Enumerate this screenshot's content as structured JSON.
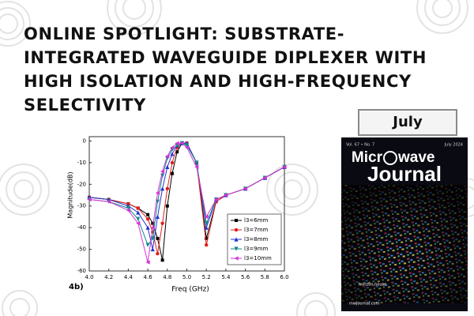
{
  "header": {
    "title_lines": [
      "ONLINE SPOTLIGHT: SUBSTRATE-",
      "INTEGRATED WAVEGUIDE DIPLEXER WITH",
      "HIGH ISOLATION AND HIGH-FREQUENCY",
      "SELECTIVITY"
    ]
  },
  "badge": {
    "label": "July"
  },
  "cover": {
    "issue": "Vol. 67 • No. 7",
    "date": "July 2024",
    "masthead_left": "Micr",
    "masthead_right": "wave",
    "masthead_bottom": "Journal",
    "publisher": "horizon house",
    "url": "mwjournal.com"
  },
  "figure_label": "4b)",
  "chart_data": {
    "type": "line",
    "x_label": "Freq (GHz)",
    "y_label": "Magnitude(dB)",
    "x": [
      4.0,
      4.2,
      4.4,
      4.5,
      4.6,
      4.65,
      4.7,
      4.75,
      4.8,
      4.85,
      4.9,
      4.95,
      5.0,
      5.1,
      5.2,
      5.3,
      5.4,
      5.6,
      5.8,
      6.0
    ],
    "series": [
      {
        "name": "l3=6mm",
        "color": "#000000",
        "marker": "square",
        "values": [
          -26,
          -27,
          -29,
          -31,
          -34,
          -38,
          -45,
          -55,
          -30,
          -15,
          -5,
          -1,
          -1,
          -10,
          -45,
          -28,
          -25,
          -22,
          -17,
          -12
        ]
      },
      {
        "name": "l3=7mm",
        "color": "#e0201b",
        "marker": "circle",
        "values": [
          -26,
          -27,
          -29,
          -31,
          -36,
          -42,
          -52,
          -38,
          -22,
          -10,
          -3,
          -1,
          -1,
          -10,
          -48,
          -28,
          -25,
          -22,
          -17,
          -12
        ]
      },
      {
        "name": "l3=8mm",
        "color": "#2233cc",
        "marker": "triangle-up",
        "values": [
          -26,
          -27,
          -30,
          -33,
          -40,
          -50,
          -35,
          -22,
          -12,
          -6,
          -2,
          -1,
          -1,
          -10,
          -40,
          -27,
          -25,
          -22,
          -17,
          -12
        ]
      },
      {
        "name": "l3=9mm",
        "color": "#138a8a",
        "marker": "triangle-down",
        "values": [
          -27,
          -28,
          -31,
          -36,
          -48,
          -45,
          -28,
          -16,
          -8,
          -4,
          -2,
          -1,
          -2,
          -10,
          -38,
          -27,
          -25,
          -22,
          -17,
          -12
        ]
      },
      {
        "name": "l3=10mm",
        "color": "#d532d5",
        "marker": "triangle-left",
        "values": [
          -27,
          -28,
          -32,
          -38,
          -56,
          -40,
          -24,
          -14,
          -7,
          -3,
          -1,
          -1,
          -3,
          -12,
          -35,
          -27,
          -25,
          -22,
          -17,
          -12
        ]
      }
    ],
    "xlim": [
      4.0,
      6.0
    ],
    "ylim": [
      -60,
      2
    ],
    "xticks": [
      {
        "value": 4.0,
        "label": "4.0"
      },
      4.2,
      4.4,
      4.6,
      4.8,
      {
        "value": 5.0,
        "label": "5.0"
      },
      5.2,
      5.4,
      5.6,
      5.8,
      {
        "value": 6.0,
        "label": "6.0"
      }
    ],
    "yticks": [
      0,
      -10,
      -20,
      -30,
      -40,
      -50,
      -60
    ],
    "legend": "lower-right"
  }
}
